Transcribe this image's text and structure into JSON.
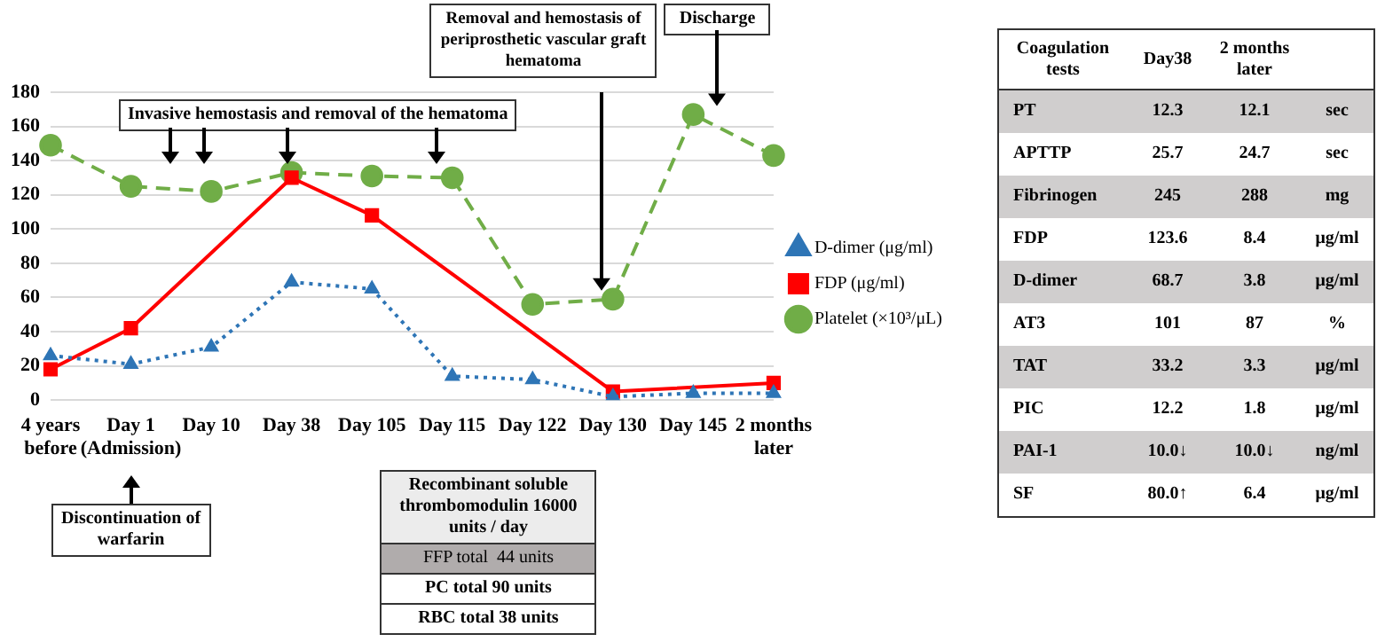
{
  "chart_data": [
    {
      "type": "line",
      "categories": [
        "4 years before",
        "Day 1 (Admission)",
        "Day 10",
        "Day 38",
        "Day 105",
        "Day 115",
        "Day 122",
        "Day 130",
        "Day 145",
        "2 months later"
      ],
      "series": [
        {
          "name": "D-dimer (μg/ml)",
          "color": "#2e75b6",
          "marker": "triangle",
          "line_style": "dotted",
          "values": [
            26,
            21,
            31,
            69,
            65,
            14,
            12,
            2,
            4,
            4
          ]
        },
        {
          "name": "FDP (μg/ml)",
          "color": "#ff0000",
          "marker": "square",
          "line_style": "solid",
          "values": [
            18,
            42,
            null,
            130,
            108,
            null,
            null,
            5,
            null,
            10
          ]
        },
        {
          "name": "Platelet (×10³/μL)",
          "color": "#70ad47",
          "marker": "circle",
          "line_style": "dashed",
          "values": [
            149,
            125,
            122,
            133,
            131,
            130,
            56,
            59,
            167,
            143
          ]
        }
      ],
      "ylim": [
        0,
        180
      ],
      "yticks": [
        0,
        20,
        40,
        60,
        80,
        100,
        120,
        140,
        160,
        180
      ],
      "grid": "y",
      "legend": "right",
      "annotations": [
        "Invasive hemostasis and removal of the hematoma",
        "Removal and hemostasis of periprosthetic vascular graft hematoma",
        "Discharge",
        "Discontinuation of warfarin",
        "Recombinant soluble thrombomodulin 16000 units / day",
        "FFP total  44 units",
        "PC total 90 units",
        "RBC total 38 units"
      ]
    },
    {
      "type": "other",
      "annotations": [
        "Coagulation tests",
        "Day38",
        "2 months later",
        null,
        "PT",
        "12.3",
        "12.1",
        "sec",
        "APTTP",
        "25.7",
        "24.7",
        "sec",
        "Fibrinogen",
        "245",
        "288",
        "mg",
        "FDP",
        "123.6",
        "8.4",
        "μg/ml",
        "D-dimer",
        "68.7",
        "3.8",
        "μg/ml",
        "AT3",
        "101",
        "87",
        "%",
        "TAT",
        "33.2",
        "3.3",
        "μg/ml",
        "PIC",
        "12.2",
        "1.8",
        "μg/ml",
        "PAI-1",
        "10.0↓",
        "10.0↓",
        "ng/ml",
        "SF",
        "80.0↑",
        "6.4",
        "μg/ml"
      ]
    }
  ]
}
